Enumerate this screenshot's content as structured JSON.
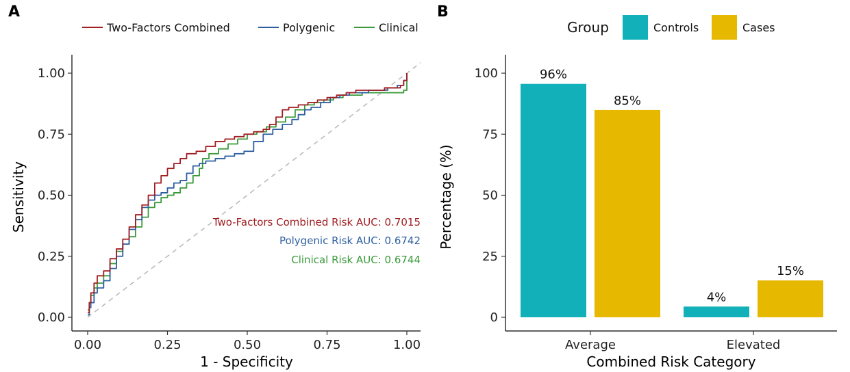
{
  "panels": {
    "a": {
      "tag": "A"
    },
    "b": {
      "tag": "B"
    }
  },
  "chart_data": [
    {
      "type": "line",
      "panel": "A",
      "xlabel": "1 - Specificity",
      "ylabel": "Sensitivity",
      "xlim": [
        0,
        1
      ],
      "ylim": [
        0,
        1
      ],
      "x_ticks": [
        "0.00",
        "0.25",
        "0.50",
        "0.75",
        "1.00"
      ],
      "y_ticks": [
        "0.00",
        "0.25",
        "0.50",
        "0.75",
        "1.00"
      ],
      "legend": {
        "position": "top"
      },
      "reference_line": {
        "style": "dashed",
        "color": "#bbbbbb"
      },
      "series": [
        {
          "name": "Two-Factors Combined",
          "color": "#a11d21",
          "annotation": "Two-Factors Combined Risk AUC: 0.7015",
          "x": [
            0,
            0.005,
            0.01,
            0.02,
            0.03,
            0.05,
            0.07,
            0.09,
            0.11,
            0.13,
            0.15,
            0.17,
            0.19,
            0.21,
            0.23,
            0.25,
            0.27,
            0.29,
            0.31,
            0.34,
            0.37,
            0.4,
            0.43,
            0.46,
            0.49,
            0.52,
            0.55,
            0.57,
            0.59,
            0.61,
            0.63,
            0.66,
            0.69,
            0.72,
            0.75,
            0.78,
            0.81,
            0.84,
            0.87,
            0.9,
            0.93,
            0.96,
            0.98,
            0.99,
            1.0
          ],
          "y": [
            0.02,
            0.06,
            0.1,
            0.14,
            0.17,
            0.19,
            0.24,
            0.28,
            0.32,
            0.37,
            0.42,
            0.46,
            0.5,
            0.55,
            0.58,
            0.61,
            0.63,
            0.65,
            0.67,
            0.68,
            0.7,
            0.72,
            0.73,
            0.74,
            0.75,
            0.76,
            0.77,
            0.79,
            0.82,
            0.85,
            0.86,
            0.87,
            0.88,
            0.89,
            0.9,
            0.91,
            0.92,
            0.93,
            0.93,
            0.93,
            0.94,
            0.94,
            0.95,
            0.97,
            1.0
          ]
        },
        {
          "name": "Polygenic",
          "color": "#2e5fa1",
          "annotation": "Polygenic Risk AUC: 0.6742",
          "x": [
            0,
            0.005,
            0.01,
            0.02,
            0.03,
            0.05,
            0.07,
            0.09,
            0.11,
            0.13,
            0.15,
            0.17,
            0.19,
            0.21,
            0.23,
            0.25,
            0.27,
            0.29,
            0.31,
            0.33,
            0.35,
            0.37,
            0.4,
            0.43,
            0.46,
            0.49,
            0.52,
            0.55,
            0.58,
            0.61,
            0.64,
            0.66,
            0.68,
            0.7,
            0.73,
            0.76,
            0.79,
            0.82,
            0.85,
            0.88,
            0.91,
            0.94,
            0.97,
            0.99,
            1.0
          ],
          "y": [
            0.01,
            0.04,
            0.06,
            0.1,
            0.12,
            0.15,
            0.2,
            0.25,
            0.3,
            0.36,
            0.4,
            0.45,
            0.48,
            0.5,
            0.51,
            0.53,
            0.55,
            0.56,
            0.59,
            0.62,
            0.63,
            0.64,
            0.65,
            0.66,
            0.67,
            0.68,
            0.72,
            0.75,
            0.77,
            0.79,
            0.81,
            0.83,
            0.85,
            0.86,
            0.88,
            0.9,
            0.91,
            0.92,
            0.92,
            0.93,
            0.93,
            0.94,
            0.95,
            0.97,
            1.0
          ]
        },
        {
          "name": "Clinical",
          "color": "#3a9a3a",
          "annotation": "Clinical Risk AUC: 0.6744",
          "x": [
            0,
            0.005,
            0.01,
            0.02,
            0.03,
            0.05,
            0.07,
            0.09,
            0.11,
            0.13,
            0.15,
            0.17,
            0.19,
            0.21,
            0.23,
            0.25,
            0.27,
            0.29,
            0.31,
            0.33,
            0.35,
            0.36,
            0.38,
            0.41,
            0.44,
            0.47,
            0.5,
            0.53,
            0.56,
            0.59,
            0.62,
            0.65,
            0.68,
            0.71,
            0.74,
            0.77,
            0.8,
            0.83,
            0.86,
            0.89,
            0.92,
            0.95,
            0.98,
            0.99,
            1.0
          ],
          "y": [
            0.03,
            0.06,
            0.09,
            0.12,
            0.14,
            0.17,
            0.22,
            0.27,
            0.3,
            0.33,
            0.37,
            0.41,
            0.45,
            0.47,
            0.49,
            0.5,
            0.51,
            0.53,
            0.55,
            0.58,
            0.61,
            0.65,
            0.67,
            0.69,
            0.71,
            0.73,
            0.75,
            0.76,
            0.78,
            0.8,
            0.82,
            0.85,
            0.87,
            0.88,
            0.89,
            0.9,
            0.91,
            0.91,
            0.92,
            0.92,
            0.92,
            0.92,
            0.92,
            0.93,
            1.0
          ]
        }
      ]
    },
    {
      "type": "bar",
      "panel": "B",
      "xlabel": "Combined Risk Category",
      "ylabel": "Percentage (%)",
      "categories": [
        "Average",
        "Elevated"
      ],
      "ylim": [
        0,
        100
      ],
      "y_ticks": [
        "0",
        "25",
        "50",
        "75",
        "100"
      ],
      "legend": {
        "title": "Group",
        "position": "top"
      },
      "series": [
        {
          "name": "Controls",
          "color": "#12b0b8",
          "values": [
            95.6,
            4.4
          ],
          "labels": [
            "96%",
            "4%"
          ]
        },
        {
          "name": "Cases",
          "color": "#e6b800",
          "values": [
            84.9,
            15.1
          ],
          "labels": [
            "85%",
            "15%"
          ]
        }
      ]
    }
  ]
}
